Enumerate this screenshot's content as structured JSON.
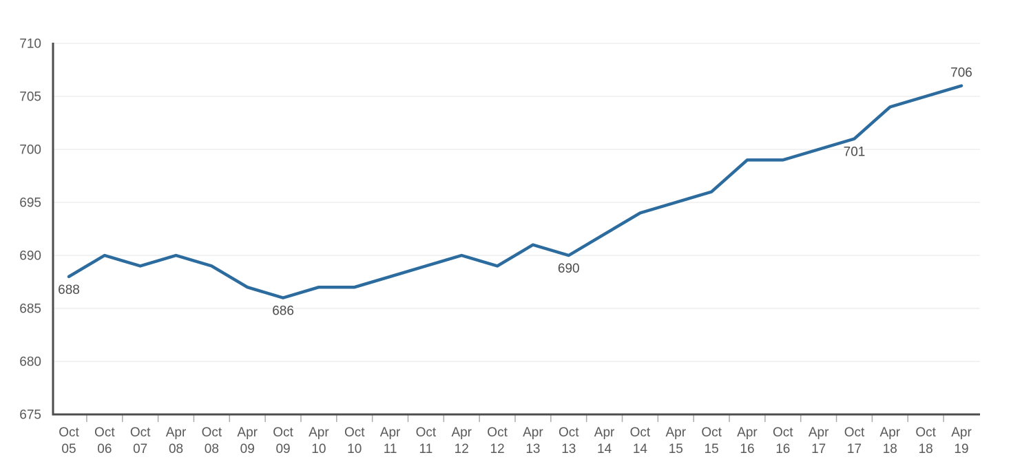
{
  "chart_data": {
    "type": "line",
    "title": "",
    "categories": [
      "Oct 05",
      "Oct 06",
      "Oct 07",
      "Apr 08",
      "Oct 08",
      "Apr 09",
      "Oct 09",
      "Apr 10",
      "Oct 10",
      "Apr 11",
      "Oct 11",
      "Apr 12",
      "Oct 12",
      "Apr 13",
      "Oct 13",
      "Apr 14",
      "Oct 14",
      "Apr 15",
      "Oct 15",
      "Apr 16",
      "Oct 16",
      "Apr 17",
      "Oct 17",
      "Apr 18",
      "Oct 18",
      "Apr 19"
    ],
    "values": [
      688,
      690,
      689,
      690,
      689,
      687,
      686,
      687,
      687,
      688,
      689,
      690,
      689,
      691,
      690,
      692,
      694,
      695,
      696,
      699,
      699,
      700,
      701,
      704,
      705,
      706
    ],
    "y_ticks": [
      675,
      680,
      685,
      690,
      695,
      700,
      705,
      710
    ],
    "ylim": [
      675,
      710
    ],
    "grid": true,
    "legend": "none",
    "labeled_points": [
      {
        "index": 0,
        "text": "688",
        "position": "below"
      },
      {
        "index": 6,
        "text": "686",
        "position": "below"
      },
      {
        "index": 14,
        "text": "690",
        "position": "below"
      },
      {
        "index": 22,
        "text": "701",
        "position": "below"
      },
      {
        "index": 25,
        "text": "706",
        "position": "above"
      }
    ],
    "colors": {
      "line": "#2c6b9e",
      "axis": "#4d4d4d",
      "grid": "#e6e6e6",
      "tick": "#aaaaaa",
      "axis_text": "#595959",
      "point_label_text": "#4d4d4d",
      "background": "#ffffff"
    }
  }
}
